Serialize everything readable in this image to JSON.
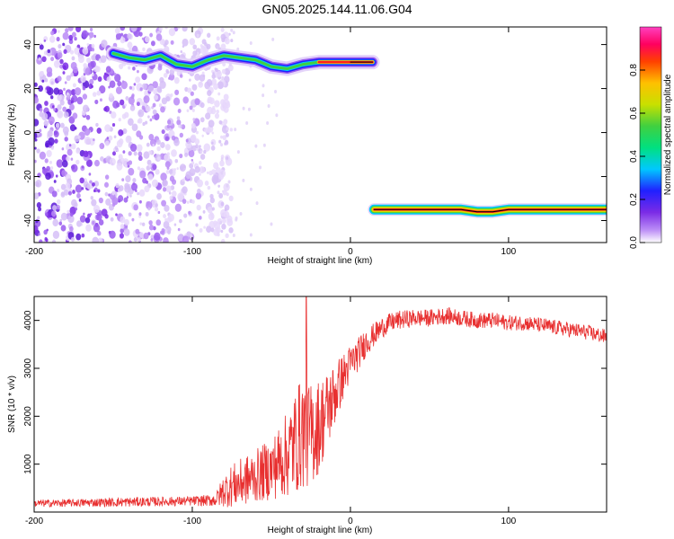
{
  "title": "GN05.2025.144.11.06.G04",
  "chart_data": [
    {
      "type": "heatmap",
      "xlabel": "Height of straight line (km)",
      "ylabel": "Frequency (Hz)",
      "xlim": [
        -200,
        162
      ],
      "ylim": [
        -50,
        48
      ],
      "x_ticks": [
        -200,
        -100,
        0,
        100
      ],
      "y_ticks": [
        -40,
        -20,
        0,
        20,
        40
      ],
      "colorbar": {
        "label": "Normalized spectral amplitude",
        "range": [
          0,
          1
        ],
        "ticks": [
          "0.0",
          "0.2",
          "0.4",
          "0.6",
          "0.8"
        ],
        "colormap": [
          "#ffffff",
          "#ba8bf6",
          "#7b2be6",
          "#2020ff",
          "#00c8ff",
          "#00e080",
          "#40d040",
          "#c8e000",
          "#ffc000",
          "#ff4000",
          "#ff0060",
          "#ff40c0"
        ]
      },
      "upper_trace": {
        "x": [
          -150,
          -140,
          -130,
          -120,
          -110,
          -100,
          -90,
          -80,
          -70,
          -60,
          -50,
          -40,
          -30,
          -20,
          -10,
          0,
          10,
          14
        ],
        "y": [
          36,
          34,
          33,
          35,
          31,
          30,
          33,
          35,
          34,
          33,
          30,
          29,
          31,
          32,
          32,
          32,
          32,
          32
        ]
      },
      "lower_trace": {
        "x": [
          15,
          30,
          50,
          70,
          80,
          90,
          100,
          120,
          140,
          162
        ],
        "y": [
          -35,
          -35,
          -35,
          -35,
          -36,
          -36,
          -35,
          -35,
          -35,
          -35
        ]
      },
      "noise_region_x": [
        -200,
        -85
      ]
    },
    {
      "type": "line",
      "xlabel": "Height of straight line (km)",
      "ylabel": "SNR (10 * v/v)",
      "xlim": [
        -200,
        162
      ],
      "ylim": [
        0,
        4500
      ],
      "x_ticks": [
        -200,
        -100,
        0,
        100
      ],
      "y_ticks": [
        1000,
        2000,
        3000,
        4000
      ],
      "line_color": "#e83030",
      "series": [
        {
          "x": [
            -200,
            -180,
            -160,
            -140,
            -120,
            -100,
            -90,
            -85,
            -80,
            -75,
            -70,
            -60,
            -50,
            -40,
            -35,
            -30,
            -25,
            -20,
            -15,
            -10,
            -5,
            0,
            5,
            10,
            15,
            20,
            25,
            30,
            40,
            50,
            60,
            70,
            80,
            90,
            100,
            110,
            120,
            130,
            140,
            150,
            162
          ],
          "values": [
            180,
            190,
            200,
            210,
            220,
            230,
            240,
            260,
            450,
            550,
            600,
            750,
            900,
            1200,
            1450,
            1700,
            1600,
            1800,
            2100,
            2450,
            2800,
            3100,
            3300,
            3550,
            3700,
            3850,
            3950,
            4000,
            4050,
            4050,
            4100,
            4050,
            4000,
            4000,
            3950,
            3950,
            3900,
            3850,
            3800,
            3750,
            3650
          ],
          "spread": [
            80,
            80,
            90,
            100,
            100,
            100,
            120,
            150,
            350,
            450,
            500,
            550,
            650,
            900,
            1100,
            1200,
            1100,
            1000,
            850,
            700,
            500,
            400,
            350,
            300,
            250,
            220,
            200,
            200,
            180,
            180,
            180,
            170,
            170,
            170,
            160,
            160,
            160,
            160,
            160,
            160,
            160
          ]
        }
      ],
      "spike": {
        "x": -28,
        "value": 4500
      }
    }
  ]
}
